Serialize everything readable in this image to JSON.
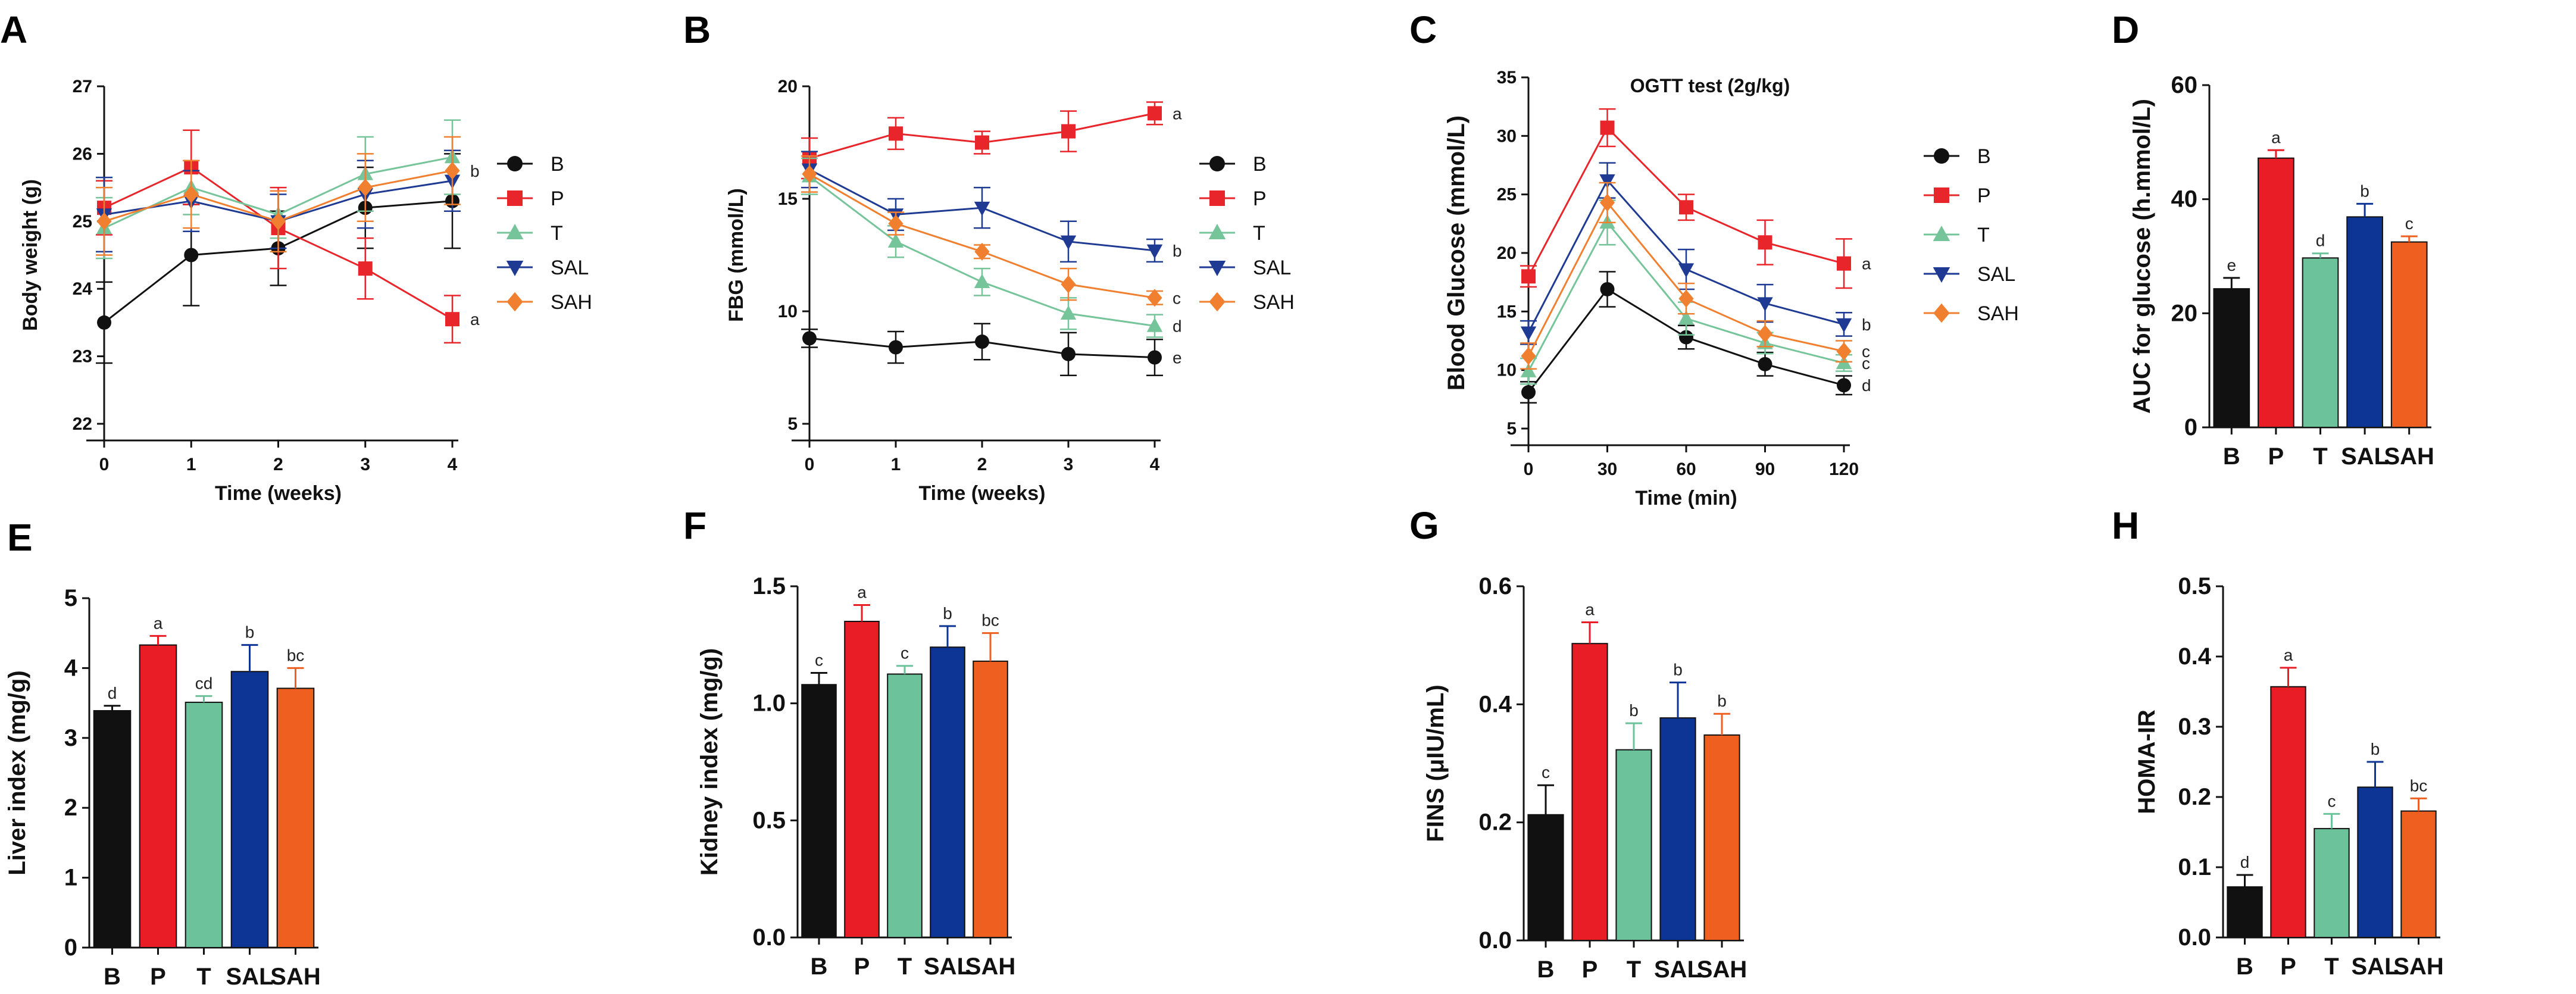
{
  "colors": {
    "B": "#111111",
    "P": "#e8252a",
    "T": "#76c49a",
    "SAL": "#1e3a93",
    "SAH": "#f08030"
  },
  "bar_colors": {
    "B": "#111111",
    "P": "#e81d25",
    "T": "#6cc29a",
    "SAL": "#0c3596",
    "SAH": "#ee5f20"
  },
  "chart_data": [
    {
      "panel": "A",
      "type": "line",
      "title": "",
      "xlabel": "Time (weeks)",
      "ylabel": "Body weight (g)",
      "x": [
        0,
        1,
        2,
        3,
        4
      ],
      "xlim": [
        0,
        4
      ],
      "ylim": [
        22,
        27
      ],
      "yticks": [
        22,
        23,
        24,
        25,
        26,
        27
      ],
      "legend": [
        "B",
        "P",
        "T",
        "SAL",
        "SAH"
      ],
      "series": [
        {
          "name": "B",
          "values": [
            23.5,
            24.5,
            24.6,
            25.2,
            25.3
          ],
          "errors": [
            0.6,
            0.75,
            0.55,
            0.6,
            0.7
          ]
        },
        {
          "name": "P",
          "values": [
            25.2,
            25.8,
            24.9,
            24.3,
            23.55
          ],
          "errors": [
            0.4,
            0.55,
            0.6,
            0.45,
            0.35
          ]
        },
        {
          "name": "T",
          "values": [
            24.9,
            25.5,
            25.1,
            25.7,
            25.95
          ],
          "errors": [
            0.45,
            0.4,
            0.35,
            0.55,
            0.55
          ]
        },
        {
          "name": "SAL",
          "values": [
            25.1,
            25.3,
            25.0,
            25.4,
            25.6
          ],
          "errors": [
            0.55,
            0.45,
            0.4,
            0.5,
            0.45
          ]
        },
        {
          "name": "SAH",
          "values": [
            25.0,
            25.4,
            25.0,
            25.5,
            25.75
          ],
          "errors": [
            0.5,
            0.5,
            0.45,
            0.5,
            0.5
          ]
        }
      ],
      "sig_labels": [
        {
          "series": "SAH",
          "text": "b"
        },
        {
          "series": "P",
          "text": "a"
        }
      ]
    },
    {
      "panel": "B",
      "type": "line",
      "title": "",
      "xlabel": "Time (weeks)",
      "ylabel": "FBG (mmol/L)",
      "x": [
        0,
        1,
        2,
        3,
        4
      ],
      "xlim": [
        0,
        4
      ],
      "ylim": [
        5,
        20
      ],
      "yticks": [
        5,
        10,
        15,
        20
      ],
      "legend": [
        "B",
        "P",
        "T",
        "SAL",
        "SAH"
      ],
      "series": [
        {
          "name": "B",
          "values": [
            8.8,
            8.4,
            8.65,
            8.1,
            7.95
          ],
          "errors": [
            0.4,
            0.7,
            0.8,
            0.95,
            0.8
          ]
        },
        {
          "name": "P",
          "values": [
            16.8,
            17.9,
            17.5,
            18.0,
            18.8
          ],
          "errors": [
            0.9,
            0.7,
            0.5,
            0.9,
            0.5
          ]
        },
        {
          "name": "T",
          "values": [
            16.0,
            13.1,
            11.3,
            9.9,
            9.35
          ],
          "errors": [
            0.8,
            0.7,
            0.6,
            0.7,
            0.5
          ]
        },
        {
          "name": "SAL",
          "values": [
            16.3,
            14.3,
            14.6,
            13.1,
            12.7
          ],
          "errors": [
            0.8,
            0.7,
            0.9,
            0.9,
            0.5
          ]
        },
        {
          "name": "SAH",
          "values": [
            16.1,
            13.9,
            12.65,
            11.2,
            10.6
          ],
          "errors": [
            0.8,
            0.5,
            0.3,
            0.7,
            0.3
          ]
        }
      ],
      "sig_labels": [
        {
          "series": "P",
          "text": "a"
        },
        {
          "series": "SAL",
          "text": "b"
        },
        {
          "series": "SAH",
          "text": "c"
        },
        {
          "series": "T",
          "text": "d"
        },
        {
          "series": "B",
          "text": "e"
        }
      ]
    },
    {
      "panel": "C",
      "type": "line",
      "title": "OGTT test (2g/kg)",
      "xlabel": "Time (min)",
      "ylabel": "Blood Glucose (mmol/L)",
      "x": [
        0,
        30,
        60,
        90,
        120
      ],
      "xlim": [
        0,
        120
      ],
      "ylim": [
        5,
        35
      ],
      "yticks": [
        5,
        10,
        15,
        20,
        25,
        30,
        35
      ],
      "legend": [
        "B",
        "P",
        "T",
        "SAL",
        "SAH"
      ],
      "series": [
        {
          "name": "B",
          "values": [
            8.1,
            16.9,
            12.8,
            10.5,
            8.7
          ],
          "errors": [
            0.9,
            1.5,
            1.0,
            1.0,
            0.8
          ]
        },
        {
          "name": "P",
          "values": [
            18.0,
            30.7,
            23.9,
            20.9,
            19.1
          ],
          "errors": [
            0.9,
            1.6,
            1.1,
            1.9,
            2.1
          ]
        },
        {
          "name": "T",
          "values": [
            9.9,
            22.6,
            14.4,
            12.3,
            10.6
          ],
          "errors": [
            1.1,
            1.9,
            1.4,
            0.9,
            0.7
          ]
        },
        {
          "name": "SAL",
          "values": [
            13.2,
            26.2,
            18.6,
            15.7,
            13.9
          ],
          "errors": [
            1.0,
            1.5,
            1.7,
            1.6,
            1.0
          ]
        },
        {
          "name": "SAH",
          "values": [
            11.2,
            24.3,
            16.1,
            13.1,
            11.6
          ],
          "errors": [
            1.1,
            1.7,
            1.3,
            1.1,
            0.9
          ]
        }
      ],
      "sig_labels": [
        {
          "series": "P",
          "text": "a"
        },
        {
          "series": "SAL",
          "text": "b"
        },
        {
          "series": "SAH",
          "text": "c"
        },
        {
          "series": "T",
          "text": "c"
        },
        {
          "series": "B",
          "text": "d"
        }
      ]
    },
    {
      "panel": "D",
      "type": "bar",
      "title": "",
      "xlabel": "",
      "ylabel": "AUC for glucose (h.mmol/L)",
      "categories": [
        "B",
        "P",
        "T",
        "SAL",
        "SAH"
      ],
      "ylim": [
        0,
        60
      ],
      "yticks": [
        0,
        20,
        40,
        60
      ],
      "values": [
        24.3,
        47.2,
        29.7,
        36.9,
        32.5
      ],
      "errors": [
        1.9,
        1.4,
        0.8,
        2.3,
        1.0
      ],
      "sig": [
        "e",
        "a",
        "d",
        "b",
        "c"
      ]
    },
    {
      "panel": "E",
      "type": "bar",
      "title": "",
      "xlabel": "",
      "ylabel": "Liver index (mg/g)",
      "categories": [
        "B",
        "P",
        "T",
        "SAL",
        "SAH"
      ],
      "ylim": [
        0,
        5
      ],
      "yticks": [
        0,
        1,
        2,
        3,
        4,
        5
      ],
      "values": [
        3.39,
        4.33,
        3.51,
        3.95,
        3.71
      ],
      "errors": [
        0.07,
        0.13,
        0.09,
        0.38,
        0.29
      ],
      "sig": [
        "d",
        "a",
        "cd",
        "b",
        "bc"
      ]
    },
    {
      "panel": "F",
      "type": "bar",
      "title": "",
      "xlabel": "",
      "ylabel": "Kidney index (mg/g)",
      "categories": [
        "B",
        "P",
        "T",
        "SAL",
        "SAH"
      ],
      "ylim": [
        0,
        1.5
      ],
      "yticks": [
        "0.0",
        "0.5",
        "1.0",
        "1.5"
      ],
      "values": [
        1.08,
        1.35,
        1.125,
        1.24,
        1.18
      ],
      "errors": [
        0.05,
        0.07,
        0.035,
        0.09,
        0.12
      ],
      "sig": [
        "c",
        "a",
        "c",
        "b",
        "bc"
      ]
    },
    {
      "panel": "G",
      "type": "bar",
      "title": "",
      "xlabel": "",
      "ylabel": "FINS (μIU/mL)",
      "categories": [
        "B",
        "P",
        "T",
        "SAL",
        "SAH"
      ],
      "ylim": [
        0,
        0.6
      ],
      "yticks": [
        "0.0",
        "0.2",
        "0.4",
        "0.6"
      ],
      "values": [
        0.213,
        0.503,
        0.323,
        0.377,
        0.348
      ],
      "errors": [
        0.05,
        0.036,
        0.045,
        0.06,
        0.036
      ],
      "sig": [
        "c",
        "a",
        "b",
        "b",
        "b"
      ]
    },
    {
      "panel": "H",
      "type": "bar",
      "title": "",
      "xlabel": "",
      "ylabel": "HOMA-IR",
      "categories": [
        "B",
        "P",
        "T",
        "SAL",
        "SAH"
      ],
      "ylim": [
        0,
        0.5
      ],
      "yticks": [
        "0.0",
        "0.1",
        "0.2",
        "0.3",
        "0.4",
        "0.5"
      ],
      "values": [
        0.072,
        0.357,
        0.155,
        0.214,
        0.18
      ],
      "errors": [
        0.017,
        0.027,
        0.021,
        0.036,
        0.018
      ],
      "sig": [
        "d",
        "a",
        "c",
        "b",
        "bc"
      ]
    }
  ]
}
